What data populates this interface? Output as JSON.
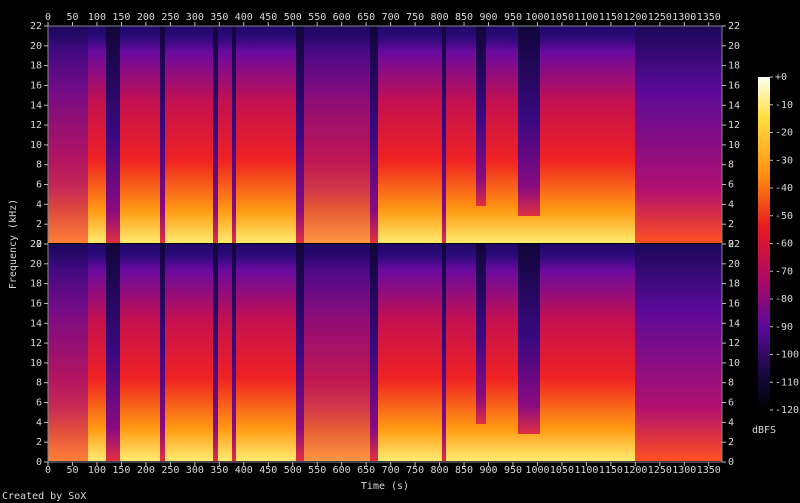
{
  "chart_data": {
    "type": "spectrogram",
    "xlabel": "Time (s)",
    "ylabel": "Frequency (kHz)",
    "credit": "Created by SoX",
    "xlim": [
      0,
      1377
    ],
    "xticks": [
      0,
      50,
      100,
      150,
      200,
      250,
      300,
      350,
      400,
      450,
      500,
      550,
      600,
      650,
      700,
      750,
      800,
      850,
      900,
      950,
      1000,
      1050,
      1100,
      1150,
      1200,
      1250,
      1300,
      1350
    ],
    "ylim": [
      0,
      22
    ],
    "yticks": [
      0,
      2,
      4,
      6,
      8,
      10,
      12,
      14,
      16,
      18,
      20,
      22
    ],
    "colorbar": {
      "label": "dBFS",
      "lim": [
        -120,
        0
      ],
      "ticks": [
        {
          "value": 0,
          "label": "+0"
        },
        -10,
        -20,
        -30,
        -40,
        -50,
        -60,
        -70,
        -80,
        -90,
        -100,
        -110,
        -120
      ]
    }
  }
}
